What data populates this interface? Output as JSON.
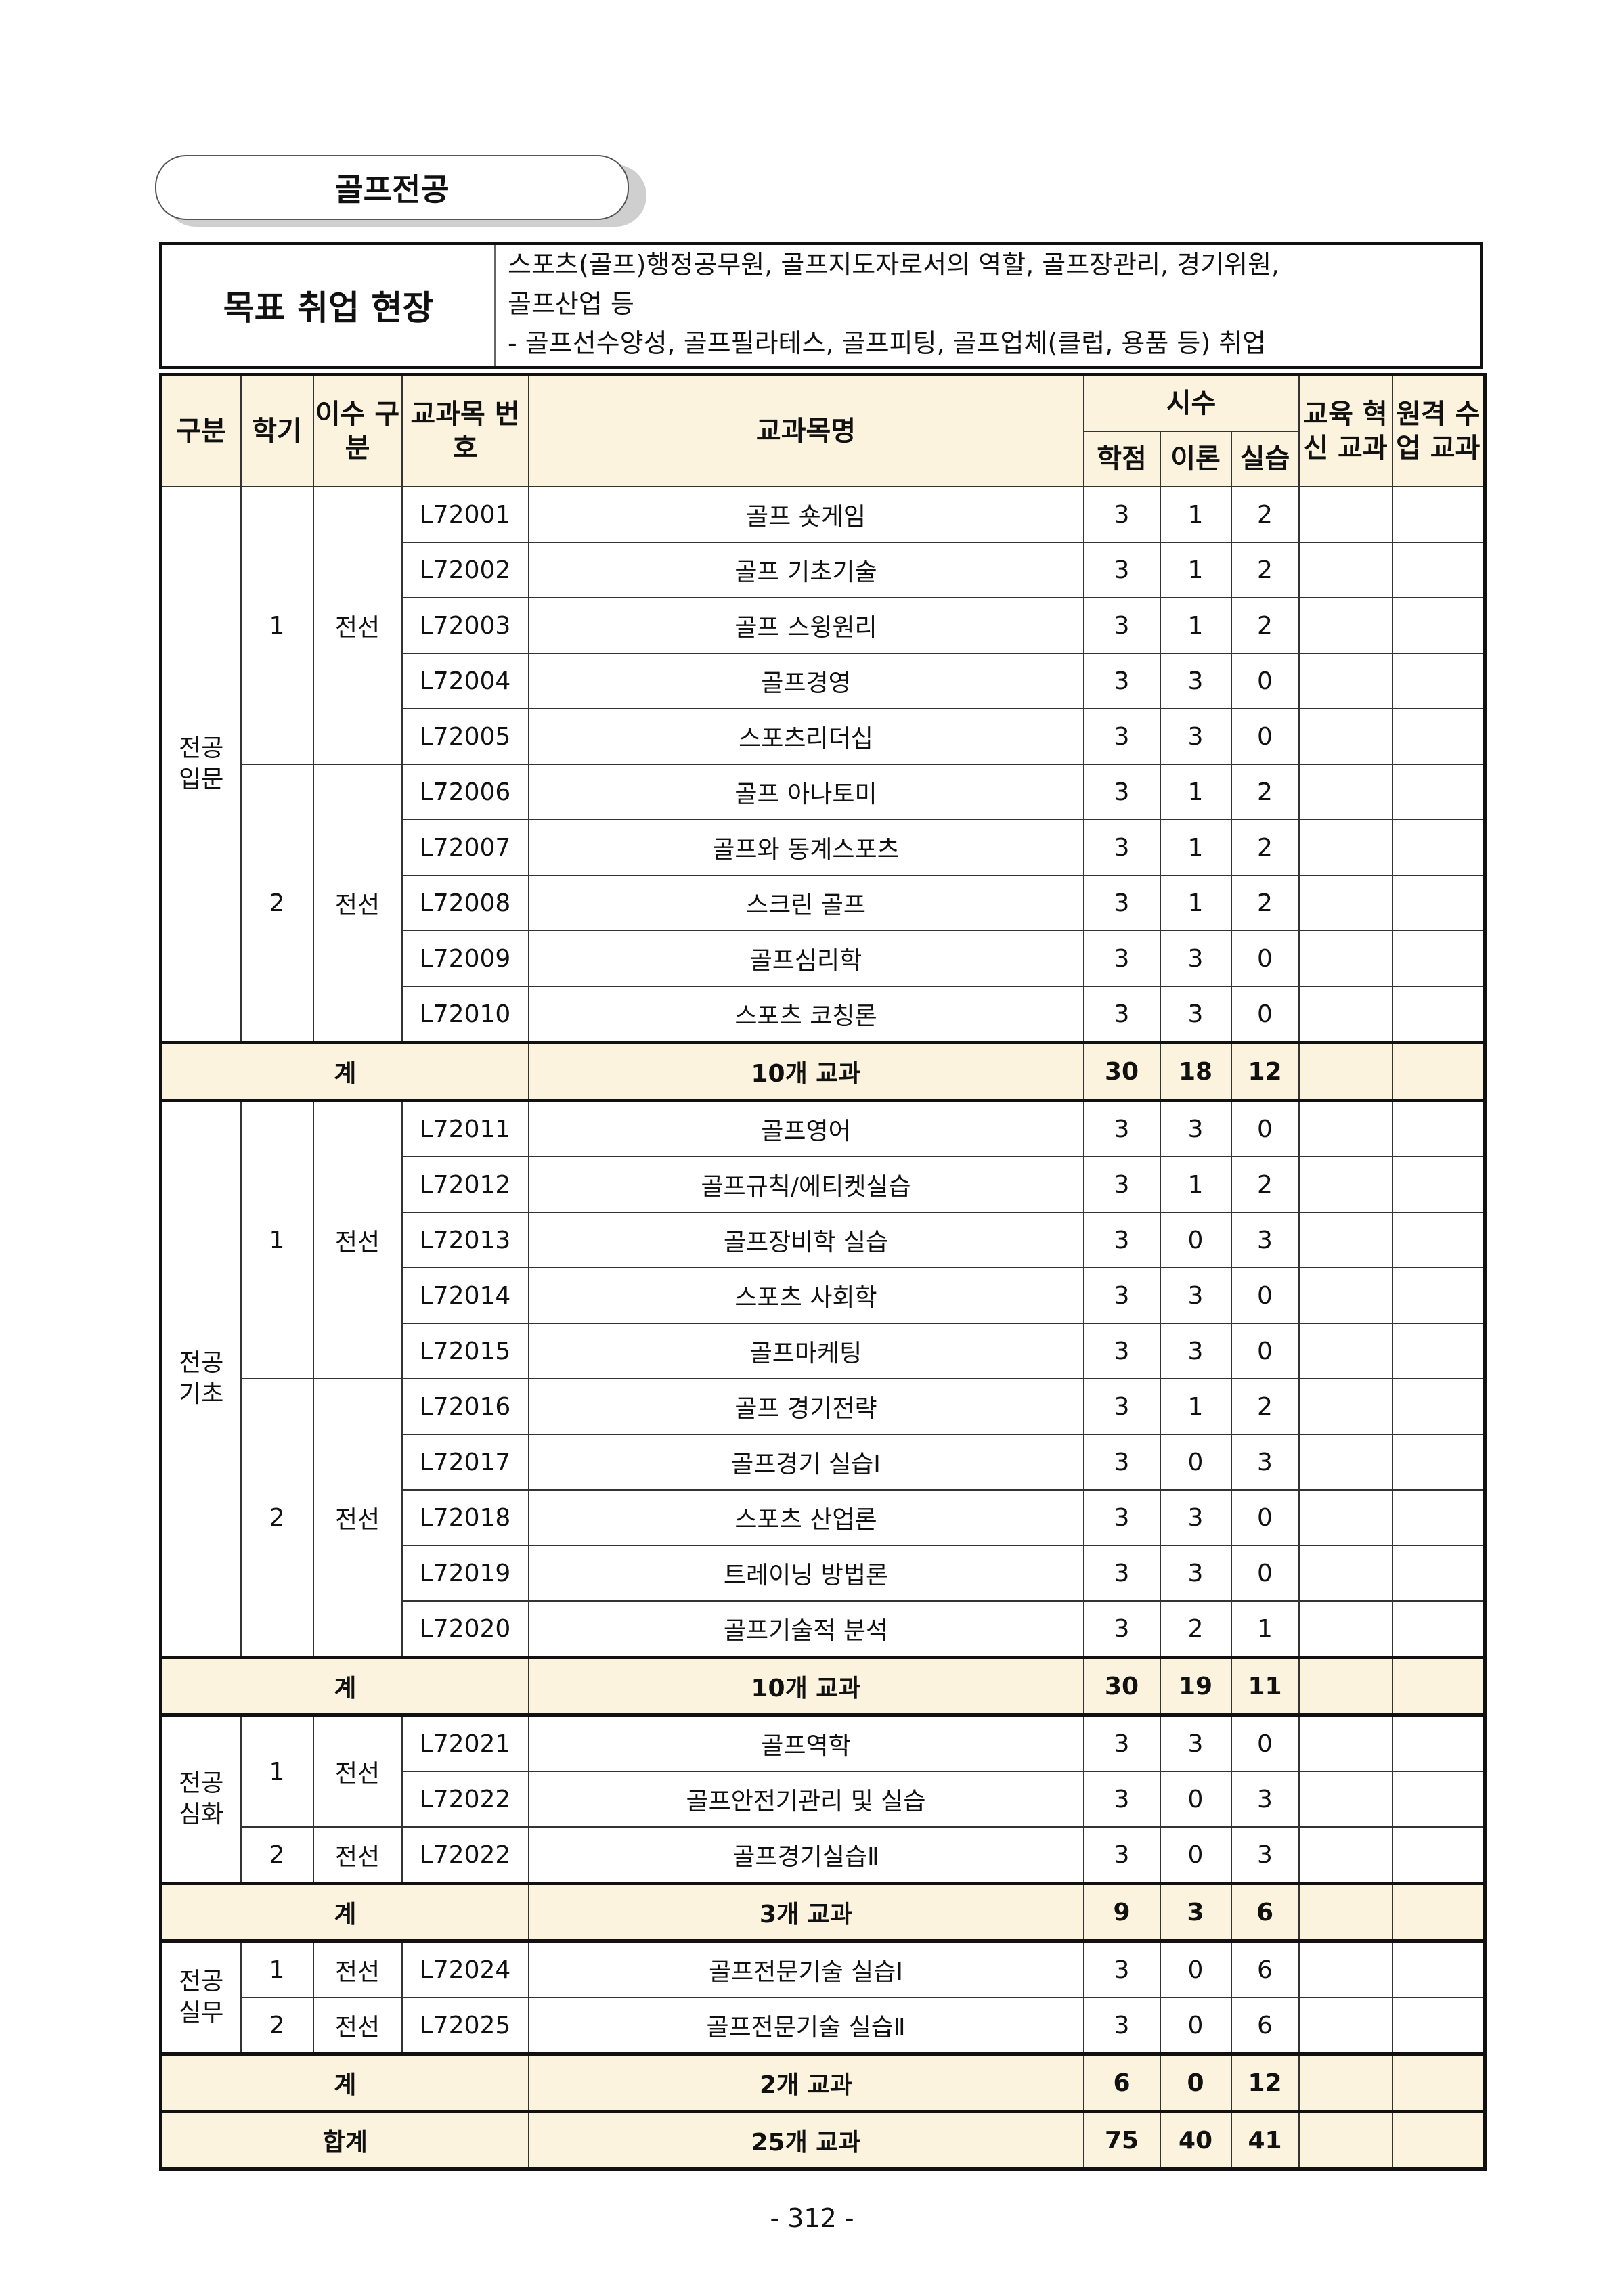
{
  "section_title": "골프전공",
  "target": {
    "label": "목표 취업 현장",
    "lines": [
      "스포츠(골프)행정공무원, 골프지도자로서의 역할, 골프장관리, 경기위원,",
      "골프산업 등",
      "- 골프선수양성, 골프필라테스, 골프피팅, 골프업체(클럽, 용품 등) 취업"
    ]
  },
  "headers": {
    "category": "구분",
    "semester": "학기",
    "type": "이수 구분",
    "code": "교과목 번 호",
    "name": "교과목명",
    "hours": "시수",
    "credit": "학점",
    "theory": "이론",
    "practice": "실습",
    "innovation": "교육 혁신 교과",
    "remote": "원격 수업 교과"
  },
  "groups": [
    {
      "category": "전공 입문",
      "semesters": [
        {
          "semester": "1",
          "type": "전선",
          "courses": [
            [
              "L72001",
              "골프 숏게임",
              "3",
              "1",
              "2"
            ],
            [
              "L72002",
              "골프 기초기술",
              "3",
              "1",
              "2"
            ],
            [
              "L72003",
              "골프 스윙원리",
              "3",
              "1",
              "2"
            ],
            [
              "L72004",
              "골프경영",
              "3",
              "3",
              "0"
            ],
            [
              "L72005",
              "스포츠리더십",
              "3",
              "3",
              "0"
            ]
          ]
        },
        {
          "semester": "2",
          "type": "전선",
          "courses": [
            [
              "L72006",
              "골프 아나토미",
              "3",
              "1",
              "2"
            ],
            [
              "L72007",
              "골프와 동계스포츠",
              "3",
              "1",
              "2"
            ],
            [
              "L72008",
              "스크린 골프",
              "3",
              "1",
              "2"
            ],
            [
              "L72009",
              "골프심리학",
              "3",
              "3",
              "0"
            ],
            [
              "L72010",
              "스포츠 코칭론",
              "3",
              "3",
              "0"
            ]
          ]
        }
      ],
      "sum": {
        "label": "계",
        "count": "10개 교과",
        "credit": "30",
        "theory": "18",
        "practice": "12"
      }
    },
    {
      "category": "전공 기초",
      "semesters": [
        {
          "semester": "1",
          "type": "전선",
          "courses": [
            [
              "L72011",
              "골프영어",
              "3",
              "3",
              "0"
            ],
            [
              "L72012",
              "골프규칙/에티켓실습",
              "3",
              "1",
              "2"
            ],
            [
              "L72013",
              "골프장비학 실습",
              "3",
              "0",
              "3"
            ],
            [
              "L72014",
              "스포츠 사회학",
              "3",
              "3",
              "0"
            ],
            [
              "L72015",
              "골프마케팅",
              "3",
              "3",
              "0"
            ]
          ]
        },
        {
          "semester": "2",
          "type": "전선",
          "courses": [
            [
              "L72016",
              "골프 경기전략",
              "3",
              "1",
              "2"
            ],
            [
              "L72017",
              "골프경기 실습Ⅰ",
              "3",
              "0",
              "3"
            ],
            [
              "L72018",
              "스포츠 산업론",
              "3",
              "3",
              "0"
            ],
            [
              "L72019",
              "트레이닝 방법론",
              "3",
              "3",
              "0"
            ],
            [
              "L72020",
              "골프기술적 분석",
              "3",
              "2",
              "1"
            ]
          ]
        }
      ],
      "sum": {
        "label": "계",
        "count": "10개 교과",
        "credit": "30",
        "theory": "19",
        "practice": "11"
      }
    },
    {
      "category": "전공 심화",
      "semesters": [
        {
          "semester": "1",
          "type": "전선",
          "courses": [
            [
              "L72021",
              "골프역학",
              "3",
              "3",
              "0"
            ],
            [
              "L72022",
              "골프안전기관리 및 실습",
              "3",
              "0",
              "3"
            ]
          ]
        },
        {
          "semester": "2",
          "type": "전선",
          "courses": [
            [
              "L72022",
              "골프경기실습Ⅱ",
              "3",
              "0",
              "3"
            ]
          ]
        }
      ],
      "sum": {
        "label": "계",
        "count": "3개 교과",
        "credit": "9",
        "theory": "3",
        "practice": "6"
      }
    },
    {
      "category": "전공 실무",
      "semesters": [
        {
          "semester": "1",
          "type": "전선",
          "courses": [
            [
              "L72024",
              "골프전문기술 실습Ⅰ",
              "3",
              "0",
              "6"
            ]
          ]
        },
        {
          "semester": "2",
          "type": "전선",
          "courses": [
            [
              "L72025",
              "골프전문기술 실습Ⅱ",
              "3",
              "0",
              "6"
            ]
          ]
        }
      ],
      "sum": {
        "label": "계",
        "count": "2개 교과",
        "credit": "6",
        "theory": "0",
        "practice": "12"
      }
    }
  ],
  "total": {
    "label": "합계",
    "count": "25개 교과",
    "credit": "75",
    "theory": "40",
    "practice": "41"
  },
  "page_number": "- 312 -"
}
